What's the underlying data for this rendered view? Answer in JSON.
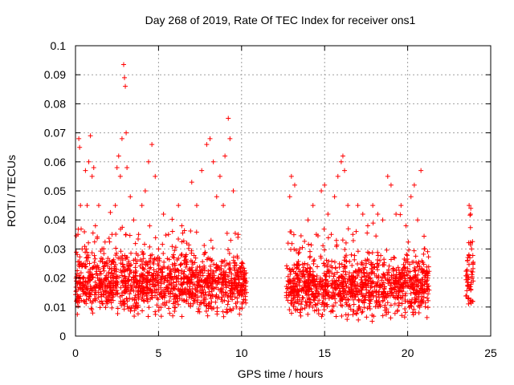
{
  "chart_data": {
    "type": "scatter",
    "title": "Day 268 of 2019, Rate Of TEC Index for receiver ons1",
    "xlabel": "GPS time / hours",
    "ylabel": "ROTI / TECUs",
    "xlim": [
      0,
      25
    ],
    "ylim": [
      0,
      0.1
    ],
    "xticks": [
      0,
      5,
      10,
      15,
      20,
      25
    ],
    "xtick_labels": [
      "0",
      "5",
      "10",
      "15",
      "20",
      "25"
    ],
    "yticks": [
      0,
      0.01,
      0.02,
      0.03,
      0.04,
      0.05,
      0.06,
      0.07,
      0.08,
      0.09,
      0.1
    ],
    "ytick_labels": [
      "0",
      "0.01",
      "0.02",
      "0.03",
      "0.04",
      "0.05",
      "0.06",
      "0.07",
      "0.08",
      "0.09",
      "0.1"
    ],
    "grid": true,
    "marker": "+",
    "color": "#ff0000",
    "series": [
      {
        "points": [
          [
            0.05,
            0.012
          ],
          [
            0.1,
            0.018
          ],
          [
            0.15,
            0.035
          ],
          [
            0.2,
            0.068
          ],
          [
            0.25,
            0.065
          ],
          [
            0.3,
            0.045
          ],
          [
            0.4,
            0.03
          ],
          [
            0.5,
            0.02
          ],
          [
            0.6,
            0.057
          ],
          [
            0.7,
            0.045
          ],
          [
            0.8,
            0.06
          ],
          [
            0.9,
            0.069
          ],
          [
            1.0,
            0.055
          ],
          [
            1.1,
            0.058
          ],
          [
            1.2,
            0.038
          ],
          [
            1.4,
            0.045
          ],
          [
            1.6,
            0.03
          ],
          [
            1.8,
            0.025
          ],
          [
            2.0,
            0.022
          ],
          [
            2.2,
            0.035
          ],
          [
            2.4,
            0.045
          ],
          [
            2.5,
            0.058
          ],
          [
            2.6,
            0.062
          ],
          [
            2.7,
            0.055
          ],
          [
            2.8,
            0.068
          ],
          [
            2.9,
            0.0935
          ],
          [
            2.95,
            0.089
          ],
          [
            3.0,
            0.086
          ],
          [
            3.05,
            0.07
          ],
          [
            3.1,
            0.058
          ],
          [
            3.3,
            0.048
          ],
          [
            3.5,
            0.04
          ],
          [
            3.8,
            0.035
          ],
          [
            4.0,
            0.045
          ],
          [
            4.2,
            0.05
          ],
          [
            4.4,
            0.06
          ],
          [
            4.6,
            0.066
          ],
          [
            4.8,
            0.055
          ],
          [
            5.0,
            0.03
          ],
          [
            5.3,
            0.042
          ],
          [
            5.6,
            0.035
          ],
          [
            5.9,
            0.028
          ],
          [
            6.2,
            0.045
          ],
          [
            6.4,
            0.038
          ],
          [
            6.7,
            0.032
          ],
          [
            7.0,
            0.053
          ],
          [
            7.3,
            0.045
          ],
          [
            7.6,
            0.057
          ],
          [
            7.9,
            0.066
          ],
          [
            8.1,
            0.068
          ],
          [
            8.3,
            0.06
          ],
          [
            8.5,
            0.048
          ],
          [
            8.7,
            0.055
          ],
          [
            8.9,
            0.045
          ],
          [
            9.0,
            0.062
          ],
          [
            9.2,
            0.075
          ],
          [
            9.3,
            0.068
          ],
          [
            9.5,
            0.05
          ],
          [
            9.8,
            0.035
          ],
          [
            10.0,
            0.025
          ],
          [
            10.2,
            0.02
          ],
          [
            10.3,
            0.015
          ],
          [
            12.7,
            0.015
          ],
          [
            12.8,
            0.032
          ],
          [
            12.9,
            0.048
          ],
          [
            13.0,
            0.055
          ],
          [
            13.2,
            0.052
          ],
          [
            13.5,
            0.03
          ],
          [
            13.8,
            0.025
          ],
          [
            14.0,
            0.04
          ],
          [
            14.3,
            0.045
          ],
          [
            14.5,
            0.035
          ],
          [
            14.8,
            0.05
          ],
          [
            15.0,
            0.052
          ],
          [
            15.2,
            0.042
          ],
          [
            15.4,
            0.035
          ],
          [
            15.6,
            0.048
          ],
          [
            15.8,
            0.055
          ],
          [
            16.0,
            0.06
          ],
          [
            16.1,
            0.062
          ],
          [
            16.2,
            0.057
          ],
          [
            16.4,
            0.045
          ],
          [
            16.7,
            0.035
          ],
          [
            17.0,
            0.045
          ],
          [
            17.3,
            0.042
          ],
          [
            17.6,
            0.038
          ],
          [
            17.9,
            0.045
          ],
          [
            18.2,
            0.042
          ],
          [
            18.5,
            0.04
          ],
          [
            18.8,
            0.055
          ],
          [
            19.0,
            0.052
          ],
          [
            19.3,
            0.042
          ],
          [
            19.6,
            0.045
          ],
          [
            19.9,
            0.038
          ],
          [
            20.2,
            0.048
          ],
          [
            20.4,
            0.052
          ],
          [
            20.6,
            0.04
          ],
          [
            20.8,
            0.057
          ],
          [
            21.0,
            0.03
          ],
          [
            21.2,
            0.02
          ],
          [
            23.6,
            0.02
          ],
          [
            23.7,
            0.045
          ],
          [
            23.8,
            0.044
          ],
          [
            23.85,
            0.03
          ],
          [
            23.9,
            0.012
          ]
        ],
        "density_bands": [
          {
            "x_start": 0.0,
            "x_end": 10.3,
            "y_center": 0.018,
            "y_spread": 0.01
          },
          {
            "x_start": 12.7,
            "x_end": 21.3,
            "y_center": 0.017,
            "y_spread": 0.01
          },
          {
            "x_start": 23.5,
            "x_end": 23.95,
            "y_center": 0.02,
            "y_spread": 0.012
          }
        ]
      }
    ]
  }
}
